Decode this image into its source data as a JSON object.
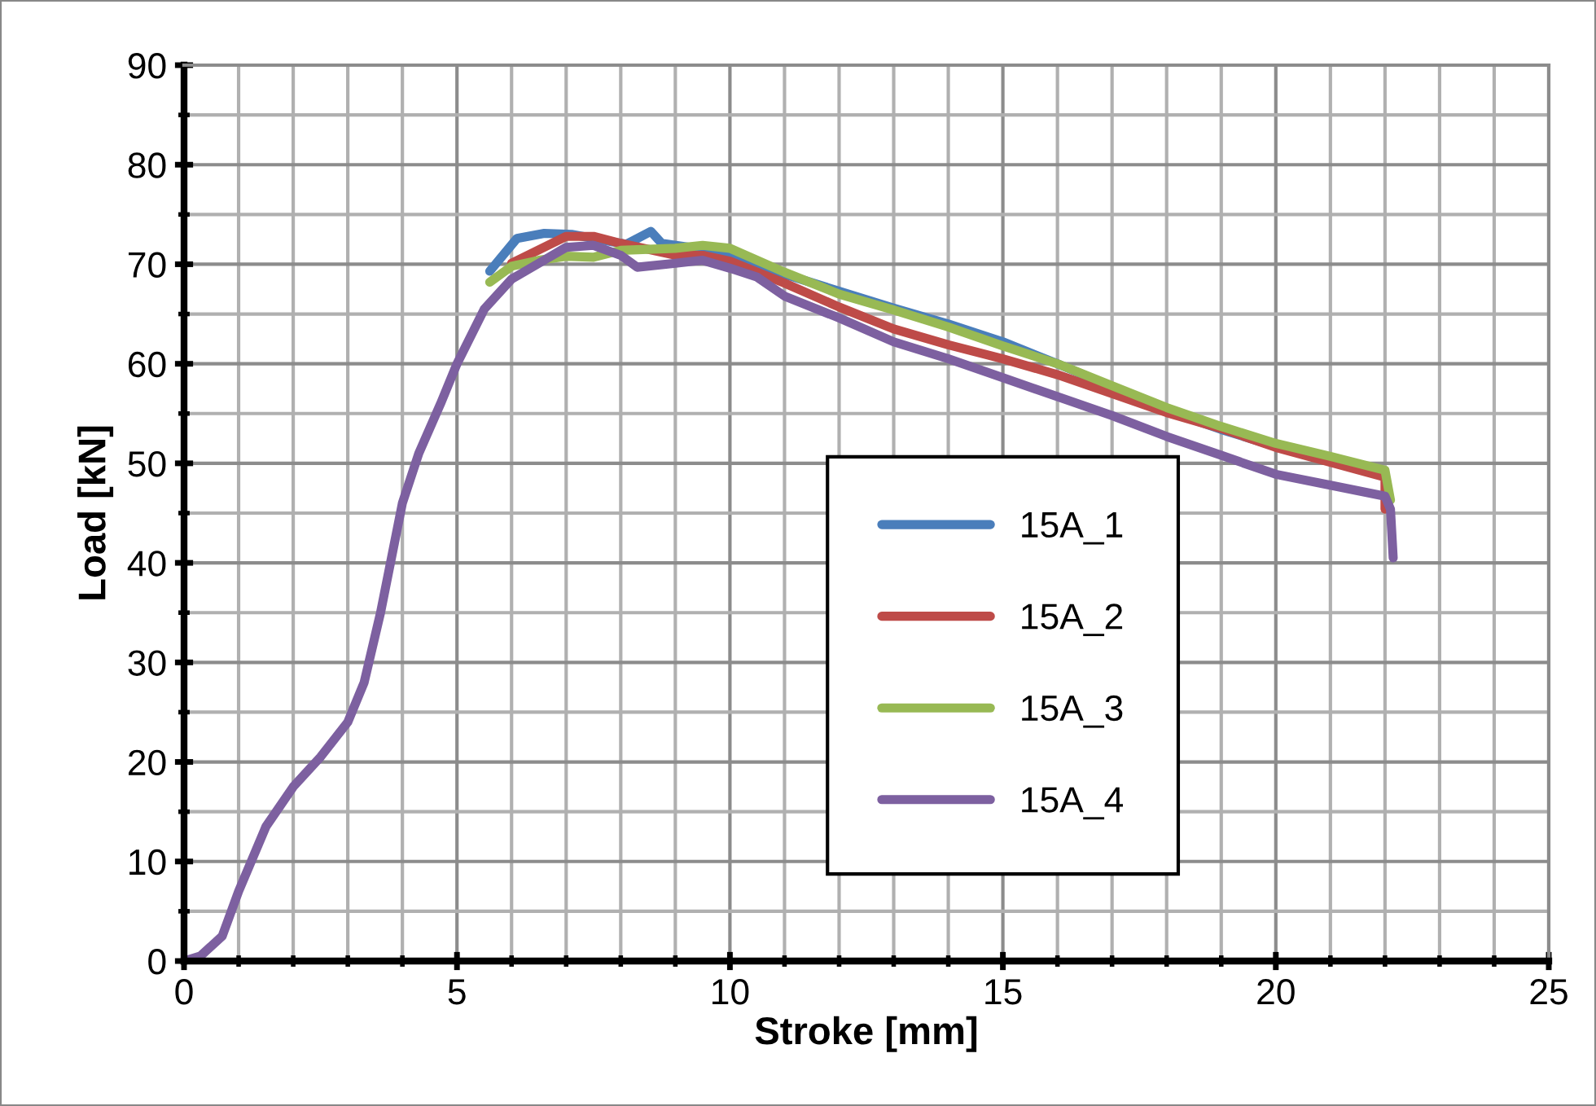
{
  "chart_data": {
    "type": "line",
    "xlabel": "Stroke [mm]",
    "ylabel": "Load [kN]",
    "xlim": [
      0,
      25
    ],
    "ylim": [
      0,
      90
    ],
    "xticks": [
      0,
      5,
      10,
      15,
      20,
      25
    ],
    "yticks": [
      0,
      10,
      20,
      30,
      40,
      50,
      60,
      70,
      80,
      90
    ],
    "grid": true,
    "legend": "right",
    "marker": "none",
    "line_style": "solid",
    "series": [
      {
        "name": "15A_1",
        "color": "#4a7ebb",
        "x": [
          5.6,
          6.1,
          6.6,
          7.1,
          8.1,
          8.55,
          8.75,
          9.5,
          10,
          11,
          12,
          13,
          14,
          15,
          16,
          17,
          18,
          19,
          20,
          21,
          22,
          22.05
        ],
        "values": [
          69.3,
          72.6,
          73.1,
          73,
          72,
          73.3,
          72.1,
          71.5,
          71,
          69,
          67.3,
          65.6,
          64,
          62.2,
          60,
          57.7,
          55.3,
          53.4,
          51.7,
          50.2,
          48.8,
          45.5
        ]
      },
      {
        "name": "15A_2",
        "color": "#be4b48",
        "x": [
          6,
          7,
          7.5,
          8,
          9,
          9.5,
          10,
          11,
          12,
          13,
          14,
          15,
          16,
          17,
          18,
          19,
          20,
          21,
          22,
          22.0
        ],
        "values": [
          70.1,
          72.8,
          72.8,
          72.1,
          70.9,
          70.9,
          70.3,
          68.1,
          65.7,
          63.5,
          61.9,
          60.5,
          58.9,
          57,
          55.1,
          53.5,
          51.6,
          50.1,
          48.6,
          45.4
        ]
      },
      {
        "name": "15A_3",
        "color": "#98b954",
        "x": [
          5.6,
          6,
          6.5,
          7,
          7.5,
          8,
          9,
          9.5,
          10,
          11,
          12,
          13,
          14,
          15,
          16,
          17,
          18,
          19,
          20,
          21,
          22,
          22.1
        ],
        "values": [
          68.2,
          69.8,
          70.4,
          70.8,
          70.7,
          71.4,
          71.6,
          71.9,
          71.6,
          69.2,
          67,
          65.4,
          63.7,
          61.8,
          60,
          57.8,
          55.6,
          53.7,
          52,
          50.7,
          49.3,
          46.3
        ]
      },
      {
        "name": "15A_4",
        "color": "#7d60a0",
        "x": [
          0,
          0.3,
          0.7,
          1.0,
          1.5,
          2,
          2.5,
          3,
          3.3,
          3.6,
          4,
          4.3,
          4.7,
          5,
          5.5,
          6,
          6.5,
          7,
          7.5,
          8,
          8.3,
          9,
          9.5,
          10,
          10.5,
          11,
          12,
          13,
          14,
          15,
          16,
          17,
          18,
          19,
          20,
          21,
          22,
          22.1,
          22.15
        ],
        "values": [
          0,
          0.5,
          2.5,
          7,
          13.5,
          17.5,
          20.5,
          24,
          28,
          35,
          46,
          51,
          56,
          60,
          65.5,
          68.5,
          70.1,
          71.7,
          71.9,
          70.9,
          69.7,
          70.1,
          70.4,
          69.6,
          68.7,
          66.8,
          64.6,
          62.2,
          60.5,
          58.6,
          56.7,
          54.8,
          52.7,
          50.8,
          48.9,
          47.8,
          46.7,
          45.4,
          40.5
        ]
      }
    ]
  }
}
